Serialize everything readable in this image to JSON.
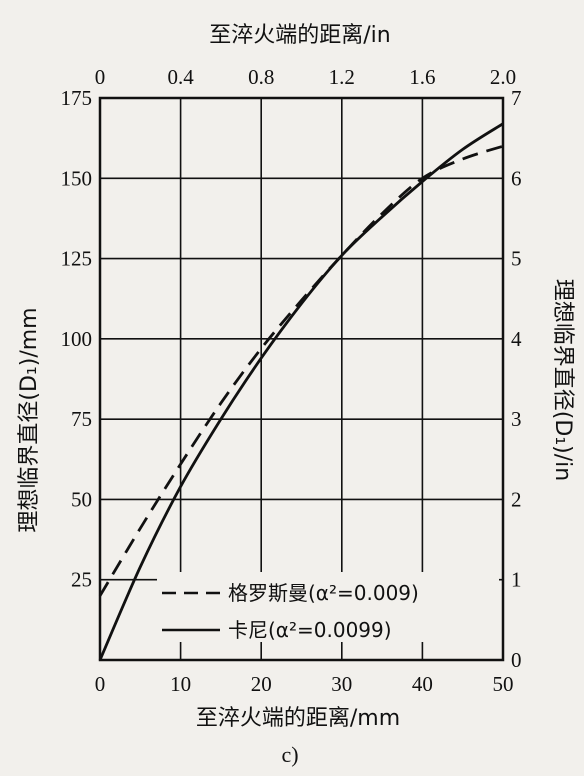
{
  "chart_data": {
    "type": "line",
    "panel_label": "c)",
    "x_bottom": {
      "label": "至淬火端的距离/mm",
      "range": [
        0,
        50
      ],
      "ticks": [
        "0",
        "10",
        "20",
        "30",
        "40",
        "50"
      ]
    },
    "x_top": {
      "label": "至淬火端的距离/in",
      "range": [
        0,
        2.0
      ],
      "ticks": [
        "0",
        "0.4",
        "0.8",
        "1.2",
        "1.6",
        "2.0"
      ]
    },
    "y_left": {
      "label": "理想临界直径(D₁)/mm",
      "range": [
        0,
        175
      ],
      "ticks": [
        "25",
        "50",
        "75",
        "100",
        "125",
        "150",
        "175"
      ]
    },
    "y_right": {
      "label": "理想临界直径(D₁)/in",
      "range": [
        0,
        7
      ],
      "ticks": [
        "0",
        "1",
        "2",
        "3",
        "4",
        "5",
        "6",
        "7"
      ]
    },
    "grid": true,
    "legend_position": "bottom-right",
    "series": [
      {
        "name": "格罗斯曼(α²=0.009)",
        "style": "dashed",
        "color": "#111111",
        "x": [
          0,
          5,
          10,
          15,
          20,
          25,
          30,
          35,
          40,
          45,
          50
        ],
        "y": [
          20,
          41,
          61,
          80,
          97,
          112,
          126,
          139,
          150,
          156,
          160
        ]
      },
      {
        "name": "卡尼(α²=0.0099)",
        "style": "solid",
        "color": "#111111",
        "x": [
          0,
          5,
          10,
          15,
          20,
          25,
          30,
          35,
          40,
          45,
          50
        ],
        "y": [
          0,
          29,
          54,
          75,
          94,
          111,
          126,
          138,
          149,
          159,
          167
        ]
      }
    ]
  }
}
